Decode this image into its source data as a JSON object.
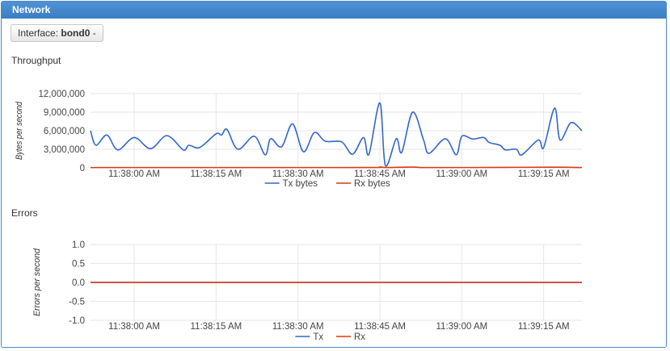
{
  "panel": {
    "title": "Network"
  },
  "interface": {
    "label": "Interface:",
    "value": "bond0",
    "caret": "-"
  },
  "colors": {
    "header": "#3f82c8",
    "tx": "#3366cc",
    "rx": "#dc3912",
    "grid": "#e6e6e6"
  },
  "sections": {
    "throughput": "Throughput",
    "errors": "Errors"
  },
  "chart_data": [
    {
      "type": "line",
      "title": "Throughput",
      "ylabel": "Bytes per second",
      "ylim": [
        0,
        12000000
      ],
      "yticks": [
        "12,000,000",
        "9,000,000",
        "6,000,000",
        "3,000,000",
        "0"
      ],
      "ytick_values": [
        12000000,
        9000000,
        6000000,
        3000000,
        0
      ],
      "xlim": [
        "11:37:52",
        "11:39:22"
      ],
      "xticks": [
        "11:38:00 AM",
        "11:38:15 AM",
        "11:38:30 AM",
        "11:38:45 AM",
        "11:39:00 AM",
        "11:39:15 AM"
      ],
      "xtick_values": [
        "11:38:00",
        "11:38:15",
        "11:38:30",
        "11:38:45",
        "11:39:00",
        "11:39:15"
      ],
      "grid": true,
      "legend": "bottom",
      "series": [
        {
          "name": "Tx bytes",
          "color": "#3366cc",
          "points": [
            [
              "11:37:52",
              6000000
            ],
            [
              "11:37:53",
              3650000
            ],
            [
              "11:37:55",
              5300000
            ],
            [
              "11:37:57",
              2900000
            ],
            [
              "11:38:00",
              4900000
            ],
            [
              "11:38:03",
              3100000
            ],
            [
              "11:38:06",
              5200000
            ],
            [
              "11:38:09",
              2900000
            ],
            [
              "11:38:10",
              3650000
            ],
            [
              "11:38:12",
              3300000
            ],
            [
              "11:38:15",
              5500000
            ],
            [
              "11:38:16",
              5300000
            ],
            [
              "11:38:17",
              6200000
            ],
            [
              "11:38:19",
              3000000
            ],
            [
              "11:38:22",
              5100000
            ],
            [
              "11:38:24",
              2100000
            ],
            [
              "11:38:25",
              4700000
            ],
            [
              "11:38:27",
              3400000
            ],
            [
              "11:38:29",
              7100000
            ],
            [
              "11:38:31",
              2600000
            ],
            [
              "11:38:33",
              5700000
            ],
            [
              "11:38:35",
              4300000
            ],
            [
              "11:38:38",
              4200000
            ],
            [
              "11:38:40",
              2200000
            ],
            [
              "11:38:42",
              4900000
            ],
            [
              "11:38:43",
              2200000
            ],
            [
              "11:38:45",
              10500000
            ],
            [
              "11:38:46",
              400000
            ],
            [
              "11:38:48",
              4700000
            ],
            [
              "11:38:49",
              2500000
            ],
            [
              "11:38:51",
              9000000
            ],
            [
              "11:38:53",
              4500000
            ],
            [
              "11:38:54",
              2350000
            ],
            [
              "11:38:57",
              4700000
            ],
            [
              "11:38:59",
              2100000
            ],
            [
              "11:39:00",
              5100000
            ],
            [
              "11:39:02",
              4650000
            ],
            [
              "11:39:04",
              4900000
            ],
            [
              "11:39:05",
              4100000
            ],
            [
              "11:39:07",
              3650000
            ],
            [
              "11:39:08",
              2900000
            ],
            [
              "11:39:10",
              3000000
            ],
            [
              "11:39:11",
              2100000
            ],
            [
              "11:39:14",
              4500000
            ],
            [
              "11:39:15",
              3300000
            ],
            [
              "11:39:17",
              9650000
            ],
            [
              "11:39:18",
              4500000
            ],
            [
              "11:39:20",
              7300000
            ],
            [
              "11:39:22",
              6000000
            ]
          ]
        },
        {
          "name": "Rx bytes",
          "color": "#dc3912",
          "points": [
            [
              "11:37:52",
              50000
            ],
            [
              "11:38:00",
              50000
            ],
            [
              "11:38:15",
              50000
            ],
            [
              "11:38:30",
              50000
            ],
            [
              "11:38:44",
              60000
            ],
            [
              "11:38:45",
              150000
            ],
            [
              "11:38:46",
              60000
            ],
            [
              "11:38:51",
              120000
            ],
            [
              "11:38:53",
              50000
            ],
            [
              "11:39:00",
              50000
            ],
            [
              "11:39:17",
              100000
            ],
            [
              "11:39:22",
              50000
            ]
          ]
        }
      ]
    },
    {
      "type": "line",
      "title": "Errors",
      "ylabel": "Errors per second",
      "ylim": [
        -1,
        1
      ],
      "yticks": [
        "1.0",
        "0.5",
        "0.0",
        "-0.5",
        "-1.0"
      ],
      "ytick_values": [
        1,
        0.5,
        0,
        -0.5,
        -1
      ],
      "xlim": [
        "11:37:52",
        "11:39:22"
      ],
      "xticks": [
        "11:38:00 AM",
        "11:38:15 AM",
        "11:38:30 AM",
        "11:38:45 AM",
        "11:39:00 AM",
        "11:39:15 AM"
      ],
      "xtick_values": [
        "11:38:00",
        "11:38:15",
        "11:38:30",
        "11:38:45",
        "11:39:00",
        "11:39:15"
      ],
      "grid": true,
      "legend": "bottom",
      "series": [
        {
          "name": "Tx",
          "color": "#3366cc",
          "points": [
            [
              "11:37:52",
              0
            ],
            [
              "11:39:22",
              0
            ]
          ]
        },
        {
          "name": "Rx",
          "color": "#dc3912",
          "points": [
            [
              "11:37:52",
              0
            ],
            [
              "11:39:22",
              0
            ]
          ]
        }
      ]
    }
  ]
}
